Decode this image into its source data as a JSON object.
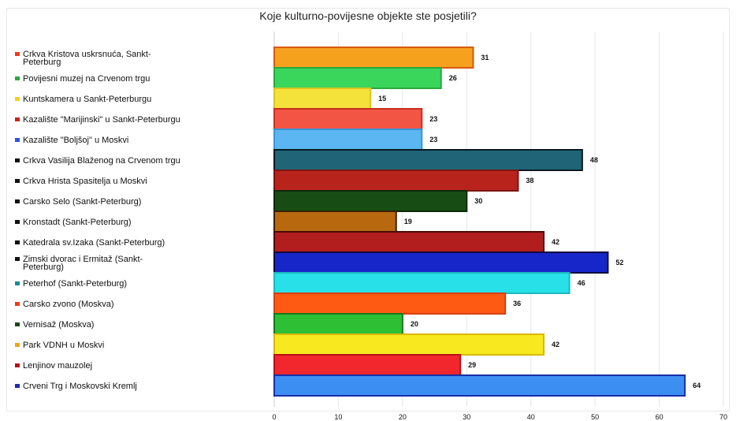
{
  "chart_data": {
    "type": "bar",
    "orientation": "horizontal",
    "title": "Koje kulturno-povijesne objekte ste posjetili?",
    "xlim": [
      0,
      70
    ],
    "xticks": [
      0,
      10,
      20,
      30,
      40,
      50,
      60,
      70
    ],
    "grid": true,
    "legend_position": "left",
    "categories": [
      [
        "Crkva Kristova uskrsnuća, Sankt-",
        "Peterburg"
      ],
      [
        "Povijesni muzej na Crvenom trgu"
      ],
      [
        "Kuntskamera u Sankt-Peterburgu"
      ],
      [
        "Kazalište \"Marijinski\" u Sankt-Peterburgu"
      ],
      [
        "Kazalište \"Boljšoj\" u Moskvi"
      ],
      [
        "Crkva Vasilija Blaženog na Crvenom trgu"
      ],
      [
        "Crkva Hrista Spasitelja u Moskvi"
      ],
      [
        "Carsko Selo (Sankt-Peterburg)"
      ],
      [
        "Kronstadt (Sankt-Peterburg)"
      ],
      [
        "Katedrala sv.Izaka (Sankt-Peterburg)"
      ],
      [
        "Zimski dvorac i Ermitaž (Sankt-",
        "Peterburg)"
      ],
      [
        "Peterhof (Sankt-Peterburg)"
      ],
      [
        "Carsko zvono (Moskva)"
      ],
      [
        "Vernisaž (Moskva)"
      ],
      [
        "Park VDNH u Moskvi"
      ],
      [
        "Lenjinov mauzolej"
      ],
      [
        "Crveni Trg i Moskovski Kremlj"
      ]
    ],
    "values": [
      31,
      26,
      15,
      23,
      23,
      48,
      38,
      30,
      19,
      42,
      52,
      46,
      36,
      20,
      42,
      29,
      64
    ],
    "bar_colors": [
      "#f5a11e",
      "#39d65b",
      "#f4e23a",
      "#f25543",
      "#5bb6f2",
      "#1f6577",
      "#b8241c",
      "#174d14",
      "#b8690f",
      "#b21d1d",
      "#1626c8",
      "#28e0e8",
      "#ff5a14",
      "#2fbf35",
      "#f7e81f",
      "#f2272d",
      "#3d8ef2"
    ],
    "bar_borders": [
      "#d85a0e",
      "#2aa83f",
      "#d8c51f",
      "#c83020",
      "#3b95d8",
      "#0a1a20",
      "#7a1510",
      "#0c2a0a",
      "#3a1f05",
      "#4a0a0a",
      "#0a0a40",
      "#1ab8c0",
      "#d8400a",
      "#147a1c",
      "#d8b800",
      "#b8101a",
      "#1a2ea8"
    ],
    "legend_colors": [
      "#f03a18",
      "#2aa83f",
      "#f4d21a",
      "#c8261c",
      "#2a55d8",
      "#111111",
      "#111111",
      "#111111",
      "#111111",
      "#111111",
      "#111111",
      "#1a8a9a",
      "#f03a18",
      "#1a4a1a",
      "#f5a11e",
      "#b8101a",
      "#1a2ea8"
    ]
  }
}
